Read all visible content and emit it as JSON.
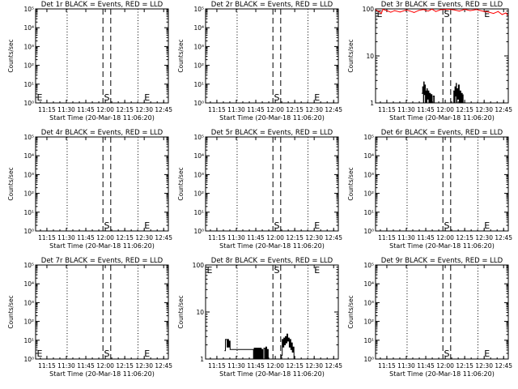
{
  "figure": {
    "subtitle": "Start Time (20-Mar-18 11:06:20)",
    "ylabel": "Counts/sec",
    "x_ticks": [
      "11:15",
      "11:30",
      "11:45",
      "12:00",
      "12:15",
      "12:30",
      "12:45"
    ],
    "x_tick_times": [
      11.25,
      11.5,
      11.75,
      12.0,
      12.25,
      12.5,
      12.75
    ],
    "x_range_hours": [
      11.105,
      12.81
    ],
    "dotted_lines_hours": [
      11.51,
      12.42
    ],
    "dashed_lines_hours": [
      11.97,
      12.07
    ],
    "marker_S_hours": 12.02,
    "marker_E_left_hours": 11.11,
    "marker_E_right_hours": 12.49,
    "colors": {
      "events": "#000000",
      "lld": "#ff0000"
    }
  },
  "chart_data": [
    {
      "type": "line",
      "title": "Det 1r BLACK = Events, RED = LLD",
      "yscale": "log",
      "ylim": [
        1,
        100000
      ],
      "y_ticks": [
        "10⁰",
        "10¹",
        "10²",
        "10³",
        "10⁴",
        "10⁵"
      ],
      "y_tick_values": [
        1,
        10,
        100,
        1000,
        10000,
        100000
      ],
      "markers": {
        "left": "E",
        "center": "S",
        "right": "E"
      },
      "events": [],
      "lld": []
    },
    {
      "type": "line",
      "title": "Det 2r BLACK = Events, RED = LLD",
      "yscale": "log",
      "ylim": [
        1,
        100000
      ],
      "y_ticks": [
        "10⁰",
        "10¹",
        "10²",
        "10³",
        "10⁴",
        "10⁵"
      ],
      "y_tick_values": [
        1,
        10,
        100,
        1000,
        10000,
        100000
      ],
      "markers": {
        "left": "",
        "center": "S",
        "right": "E"
      },
      "events": [],
      "lld": []
    },
    {
      "type": "line",
      "title": "Det 3r BLACK = Events, RED = LLD",
      "yscale": "log",
      "ylim": [
        1,
        100
      ],
      "y_ticks": [
        "1",
        "10",
        "100"
      ],
      "y_tick_values": [
        1,
        10,
        100
      ],
      "markers": {
        "left": "E",
        "center": "S",
        "right": "E"
      },
      "events": [
        {
          "x": 11.7,
          "y": 1.6
        },
        {
          "x": 11.71,
          "y": 2.2
        },
        {
          "x": 11.72,
          "y": 1.0
        },
        {
          "x": 11.725,
          "y": 2.8
        },
        {
          "x": 11.73,
          "y": 1.5
        },
        {
          "x": 11.74,
          "y": 2.4
        },
        {
          "x": 11.745,
          "y": 1.0
        },
        {
          "x": 11.75,
          "y": 1.8
        },
        {
          "x": 11.76,
          "y": 1.0
        },
        {
          "x": 11.765,
          "y": 2.0
        },
        {
          "x": 11.77,
          "y": 1.2
        },
        {
          "x": 11.78,
          "y": 1.8
        },
        {
          "x": 11.79,
          "y": 1.0
        },
        {
          "x": 11.8,
          "y": 1.6
        },
        {
          "x": 11.81,
          "y": 1.0
        },
        {
          "x": 11.82,
          "y": 1.5
        },
        {
          "x": 11.83,
          "y": 1.0
        },
        {
          "x": 11.845,
          "y": 1.4
        },
        {
          "x": 11.86,
          "y": 1.0
        },
        {
          "x": 12.1,
          "y": 1.0
        },
        {
          "x": 12.11,
          "y": 1.8
        },
        {
          "x": 12.12,
          "y": 1.0
        },
        {
          "x": 12.125,
          "y": 2.2
        },
        {
          "x": 12.13,
          "y": 1.4
        },
        {
          "x": 12.14,
          "y": 2.6
        },
        {
          "x": 12.145,
          "y": 1.0
        },
        {
          "x": 12.15,
          "y": 2.0
        },
        {
          "x": 12.16,
          "y": 1.2
        },
        {
          "x": 12.17,
          "y": 2.4
        },
        {
          "x": 12.18,
          "y": 1.0
        },
        {
          "x": 12.19,
          "y": 1.8
        },
        {
          "x": 12.2,
          "y": 1.0
        },
        {
          "x": 12.21,
          "y": 1.6
        },
        {
          "x": 12.22,
          "y": 1.0
        },
        {
          "x": 12.23,
          "y": 1.5
        }
      ],
      "lld": [
        {
          "x": 11.11,
          "y": 95
        },
        {
          "x": 11.15,
          "y": 88
        },
        {
          "x": 11.18,
          "y": 80
        },
        {
          "x": 11.2,
          "y": 98
        },
        {
          "x": 11.25,
          "y": 92
        },
        {
          "x": 11.3,
          "y": 85
        },
        {
          "x": 11.35,
          "y": 92
        },
        {
          "x": 11.42,
          "y": 86
        },
        {
          "x": 11.5,
          "y": 95
        },
        {
          "x": 11.55,
          "y": 90
        },
        {
          "x": 11.6,
          "y": 84
        },
        {
          "x": 11.66,
          "y": 93
        },
        {
          "x": 11.72,
          "y": 97
        },
        {
          "x": 11.78,
          "y": 90
        },
        {
          "x": 11.83,
          "y": 99
        },
        {
          "x": 11.88,
          "y": 88
        },
        {
          "x": 11.94,
          "y": 96
        },
        {
          "x": 12.05,
          "y": 98
        },
        {
          "x": 12.12,
          "y": 95
        },
        {
          "x": 12.18,
          "y": 90
        },
        {
          "x": 12.25,
          "y": 98
        },
        {
          "x": 12.32,
          "y": 92
        },
        {
          "x": 12.4,
          "y": 97
        },
        {
          "x": 12.48,
          "y": 90
        },
        {
          "x": 12.55,
          "y": 86
        },
        {
          "x": 12.62,
          "y": 80
        },
        {
          "x": 12.68,
          "y": 88
        },
        {
          "x": 12.73,
          "y": 76
        },
        {
          "x": 12.78,
          "y": 82
        },
        {
          "x": 12.8,
          "y": 74
        }
      ]
    },
    {
      "type": "line",
      "title": "Det 4r BLACK = Events, RED = LLD",
      "yscale": "log",
      "ylim": [
        1,
        100000
      ],
      "y_ticks": [
        "10⁰",
        "10¹",
        "10²",
        "10³",
        "10⁴",
        "10⁵"
      ],
      "y_tick_values": [
        1,
        10,
        100,
        1000,
        10000,
        100000
      ],
      "markers": {
        "left": "",
        "center": "S",
        "right": "E"
      },
      "events": [],
      "lld": []
    },
    {
      "type": "line",
      "title": "Det 5r BLACK = Events, RED = LLD",
      "yscale": "log",
      "ylim": [
        1,
        100000
      ],
      "y_ticks": [
        "10⁰",
        "10¹",
        "10²",
        "10³",
        "10⁴",
        "10⁵"
      ],
      "y_tick_values": [
        1,
        10,
        100,
        1000,
        10000,
        100000
      ],
      "markers": {
        "left": "",
        "center": "S",
        "right": "E"
      },
      "events": [],
      "lld": []
    },
    {
      "type": "line",
      "title": "Det 6r BLACK = Events, RED = LLD",
      "yscale": "log",
      "ylim": [
        1,
        100000
      ],
      "y_ticks": [
        "10⁰",
        "10¹",
        "10²",
        "10³",
        "10⁴",
        "10⁵"
      ],
      "y_tick_values": [
        1,
        10,
        100,
        1000,
        10000,
        100000
      ],
      "markers": {
        "left": "",
        "center": "S",
        "right": "E"
      },
      "events": [],
      "lld": []
    },
    {
      "type": "line",
      "title": "Det 7r BLACK = Events, RED = LLD",
      "yscale": "log",
      "ylim": [
        1,
        100000
      ],
      "y_ticks": [
        "10⁰",
        "10¹",
        "10²",
        "10³",
        "10⁴",
        "10⁵"
      ],
      "y_tick_values": [
        1,
        10,
        100,
        1000,
        10000,
        100000
      ],
      "markers": {
        "left": "E",
        "center": "S",
        "right": "E"
      },
      "events": [],
      "lld": []
    },
    {
      "type": "line",
      "title": "Det 8r BLACK = Events, RED = LLD",
      "yscale": "log",
      "ylim": [
        1,
        100
      ],
      "y_ticks": [
        "1",
        "10",
        "100"
      ],
      "y_tick_values": [
        1,
        10,
        100
      ],
      "markers": {
        "left": "E",
        "center": "S",
        "right": "E"
      },
      "events": [
        {
          "x": 11.35,
          "y": 1.5
        },
        {
          "x": 11.36,
          "y": 2.6
        },
        {
          "x": 11.38,
          "y": 1.8
        },
        {
          "x": 11.39,
          "y": 2.6
        },
        {
          "x": 11.4,
          "y": 1.8
        },
        {
          "x": 11.41,
          "y": 2.4
        },
        {
          "x": 11.42,
          "y": 1.6
        },
        {
          "x": 11.72,
          "y": 1.0
        },
        {
          "x": 11.73,
          "y": 1.7
        },
        {
          "x": 11.74,
          "y": 1.0
        },
        {
          "x": 11.75,
          "y": 1.7
        },
        {
          "x": 11.76,
          "y": 1.0
        },
        {
          "x": 11.77,
          "y": 1.7
        },
        {
          "x": 11.78,
          "y": 1.0
        },
        {
          "x": 11.79,
          "y": 1.7
        },
        {
          "x": 11.8,
          "y": 1.0
        },
        {
          "x": 11.81,
          "y": 1.7
        },
        {
          "x": 11.82,
          "y": 1.0
        },
        {
          "x": 11.83,
          "y": 1.6
        },
        {
          "x": 11.84,
          "y": 1.0
        },
        {
          "x": 11.855,
          "y": 1.7
        },
        {
          "x": 11.87,
          "y": 1.0
        },
        {
          "x": 11.88,
          "y": 1.8
        },
        {
          "x": 11.89,
          "y": 1.0
        },
        {
          "x": 11.9,
          "y": 1.6
        },
        {
          "x": 11.91,
          "y": 1.0
        },
        {
          "x": 12.08,
          "y": 1.2
        },
        {
          "x": 12.09,
          "y": 2.6
        },
        {
          "x": 12.1,
          "y": 1.8
        },
        {
          "x": 12.11,
          "y": 2.8
        },
        {
          "x": 12.12,
          "y": 2.0
        },
        {
          "x": 12.13,
          "y": 3.0
        },
        {
          "x": 12.14,
          "y": 2.2
        },
        {
          "x": 12.15,
          "y": 3.4
        },
        {
          "x": 12.16,
          "y": 2.4
        },
        {
          "x": 12.17,
          "y": 2.8
        },
        {
          "x": 12.18,
          "y": 1.8
        },
        {
          "x": 12.19,
          "y": 2.6
        },
        {
          "x": 12.2,
          "y": 1.6
        },
        {
          "x": 12.21,
          "y": 2.2
        },
        {
          "x": 12.22,
          "y": 1.4
        },
        {
          "x": 12.23,
          "y": 1.8
        },
        {
          "x": 12.24,
          "y": 1.0
        }
      ],
      "lld": []
    },
    {
      "type": "line",
      "title": "Det 9r BLACK = Events, RED = LLD",
      "yscale": "log",
      "ylim": [
        1,
        100000
      ],
      "y_ticks": [
        "10⁰",
        "10¹",
        "10²",
        "10³",
        "10⁴",
        "10⁵"
      ],
      "y_tick_values": [
        1,
        10,
        100,
        1000,
        10000,
        100000
      ],
      "markers": {
        "left": "",
        "center": "S",
        "right": "E"
      },
      "events": [],
      "lld": []
    }
  ]
}
